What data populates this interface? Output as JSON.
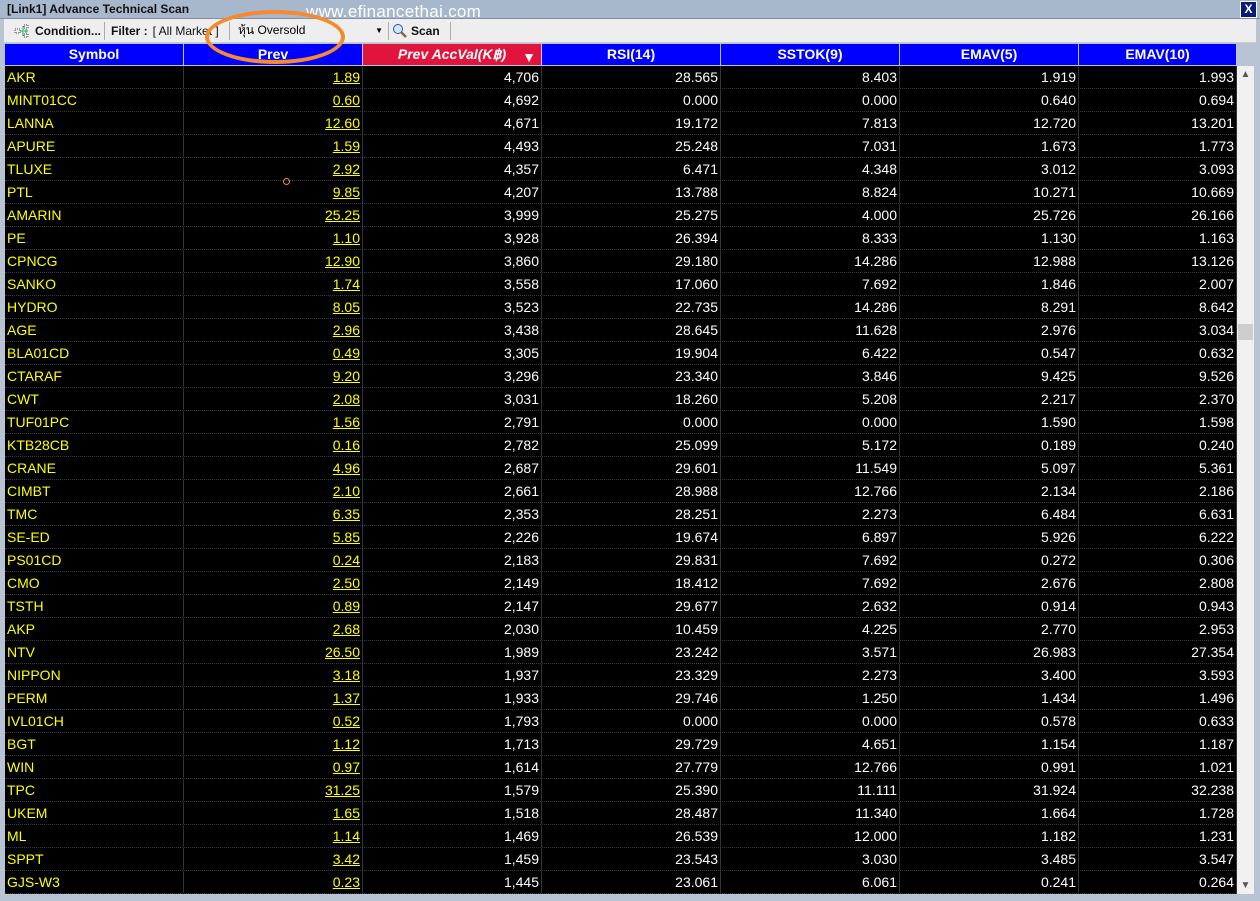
{
  "window": {
    "title": "[Link1] Advance Technical Scan",
    "close_label": "X",
    "watermark": "www.efinancethai.com"
  },
  "toolbar": {
    "condition_label": "Condition...",
    "filter_label": "Filter :",
    "filter_value": "[ All Market ]",
    "scan_type": "หุ้น Oversold",
    "scan_label": "Scan"
  },
  "columns": [
    "Symbol",
    "Prev",
    "Prev AccVal(K฿)",
    "RSI(14)",
    "SSTOK(9)",
    "EMAV(5)",
    "EMAV(10)"
  ],
  "sorted_column": "Prev AccVal(K฿)",
  "sort_direction": "descending",
  "colors": {
    "header": "#0000ff",
    "sorted_header": "#e0143c",
    "symbol_text": "#ffff00",
    "background": "#000000"
  },
  "rows": [
    [
      "AKR",
      "1.89",
      "4,706",
      "28.565",
      "8.403",
      "1.919",
      "1.993"
    ],
    [
      "MINT01CC",
      "0.60",
      "4,692",
      "0.000",
      "0.000",
      "0.640",
      "0.694"
    ],
    [
      "LANNA",
      "12.60",
      "4,671",
      "19.172",
      "7.813",
      "12.720",
      "13.201"
    ],
    [
      "APURE",
      "1.59",
      "4,493",
      "25.248",
      "7.031",
      "1.673",
      "1.773"
    ],
    [
      "TLUXE",
      "2.92",
      "4,357",
      "6.471",
      "4.348",
      "3.012",
      "3.093"
    ],
    [
      "PTL",
      "9.85",
      "4,207",
      "13.788",
      "8.824",
      "10.271",
      "10.669"
    ],
    [
      "AMARIN",
      "25.25",
      "3,999",
      "25.275",
      "4.000",
      "25.726",
      "26.166"
    ],
    [
      "PE",
      "1.10",
      "3,928",
      "26.394",
      "8.333",
      "1.130",
      "1.163"
    ],
    [
      "CPNCG",
      "12.90",
      "3,860",
      "29.180",
      "14.286",
      "12.988",
      "13.126"
    ],
    [
      "SANKO",
      "1.74",
      "3,558",
      "17.060",
      "7.692",
      "1.846",
      "2.007"
    ],
    [
      "HYDRO",
      "8.05",
      "3,523",
      "22.735",
      "14.286",
      "8.291",
      "8.642"
    ],
    [
      "AGE",
      "2.96",
      "3,438",
      "28.645",
      "11.628",
      "2.976",
      "3.034"
    ],
    [
      "BLA01CD",
      "0.49",
      "3,305",
      "19.904",
      "6.422",
      "0.547",
      "0.632"
    ],
    [
      "CTARAF",
      "9.20",
      "3,296",
      "23.340",
      "3.846",
      "9.425",
      "9.526"
    ],
    [
      "CWT",
      "2.08",
      "3,031",
      "18.260",
      "5.208",
      "2.217",
      "2.370"
    ],
    [
      "TUF01PC",
      "1.56",
      "2,791",
      "0.000",
      "0.000",
      "1.590",
      "1.598"
    ],
    [
      "KTB28CB",
      "0.16",
      "2,782",
      "25.099",
      "5.172",
      "0.189",
      "0.240"
    ],
    [
      "CRANE",
      "4.96",
      "2,687",
      "29.601",
      "11.549",
      "5.097",
      "5.361"
    ],
    [
      "CIMBT",
      "2.10",
      "2,661",
      "28.988",
      "12.766",
      "2.134",
      "2.186"
    ],
    [
      "TMC",
      "6.35",
      "2,353",
      "28.251",
      "2.273",
      "6.484",
      "6.631"
    ],
    [
      "SE-ED",
      "5.85",
      "2,226",
      "19.674",
      "6.897",
      "5.926",
      "6.222"
    ],
    [
      "PS01CD",
      "0.24",
      "2,183",
      "29.831",
      "7.692",
      "0.272",
      "0.306"
    ],
    [
      "CMO",
      "2.50",
      "2,149",
      "18.412",
      "7.692",
      "2.676",
      "2.808"
    ],
    [
      "TSTH",
      "0.89",
      "2,147",
      "29.677",
      "2.632",
      "0.914",
      "0.943"
    ],
    [
      "AKP",
      "2.68",
      "2,030",
      "10.459",
      "4.225",
      "2.770",
      "2.953"
    ],
    [
      "NTV",
      "26.50",
      "1,989",
      "23.242",
      "3.571",
      "26.983",
      "27.354"
    ],
    [
      "NIPPON",
      "3.18",
      "1,937",
      "23.329",
      "2.273",
      "3.400",
      "3.593"
    ],
    [
      "PERM",
      "1.37",
      "1,933",
      "29.746",
      "1.250",
      "1.434",
      "1.496"
    ],
    [
      "IVL01CH",
      "0.52",
      "1,793",
      "0.000",
      "0.000",
      "0.578",
      "0.633"
    ],
    [
      "BGT",
      "1.12",
      "1,713",
      "29.729",
      "4.651",
      "1.154",
      "1.187"
    ],
    [
      "WIN",
      "0.97",
      "1,614",
      "27.779",
      "12.766",
      "0.991",
      "1.021"
    ],
    [
      "TPC",
      "31.25",
      "1,579",
      "25.390",
      "11.111",
      "31.924",
      "32.238"
    ],
    [
      "UKEM",
      "1.65",
      "1,518",
      "28.487",
      "11.340",
      "1.664",
      "1.728"
    ],
    [
      "ML",
      "1.14",
      "1,469",
      "26.539",
      "12.000",
      "1.182",
      "1.231"
    ],
    [
      "SPPT",
      "3.42",
      "1,459",
      "23.543",
      "3.030",
      "3.485",
      "3.547"
    ],
    [
      "GJS-W3",
      "0.23",
      "1,445",
      "23.061",
      "6.061",
      "0.241",
      "0.264"
    ]
  ]
}
